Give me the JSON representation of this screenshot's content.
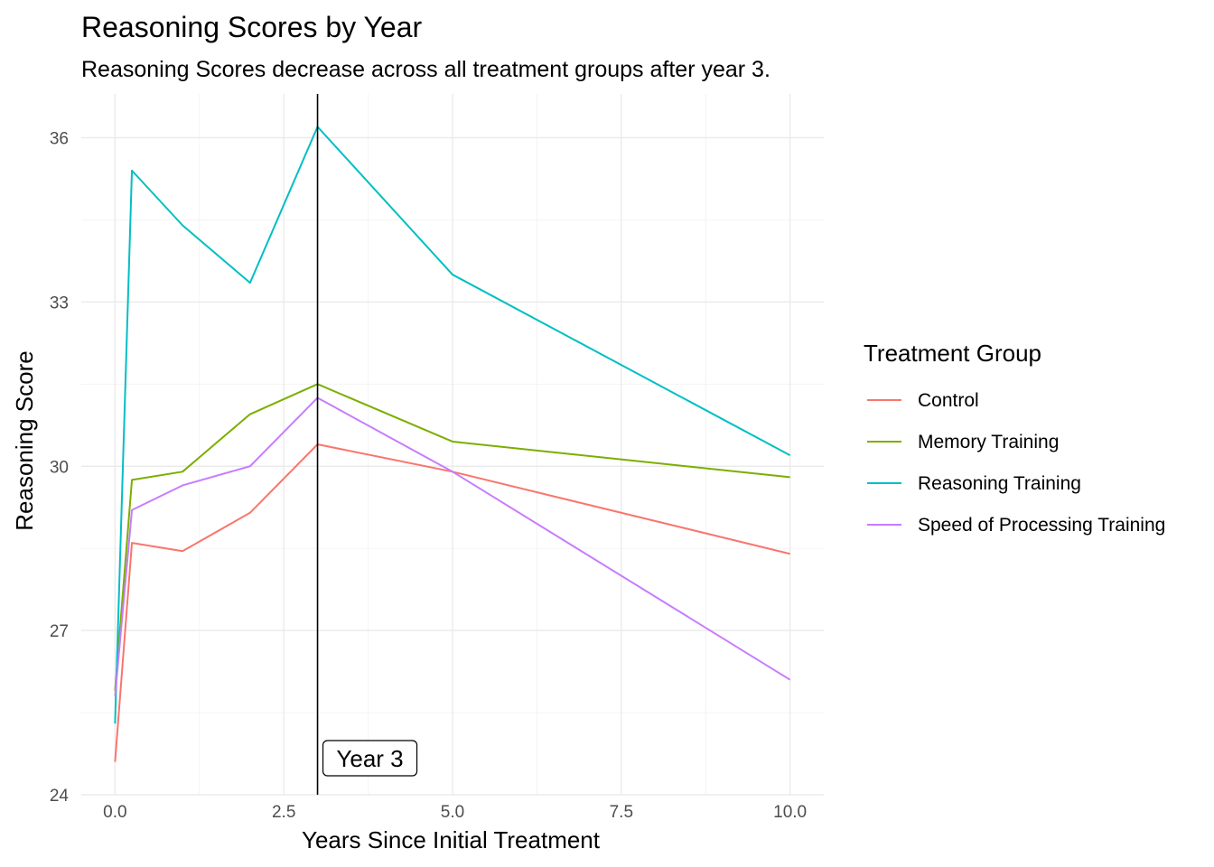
{
  "chart_data": {
    "type": "line",
    "title": "Reasoning Scores by Year",
    "subtitle": "Reasoning Scores decrease across all treatment groups after year 3.",
    "xlabel": "Years Since Initial Treatment",
    "ylabel": "Reasoning Score",
    "xlim": [
      -0.5,
      10.5
    ],
    "ylim": [
      24,
      36.8
    ],
    "x_ticks": [
      0,
      2.5,
      5,
      7.5,
      10
    ],
    "x_tick_labels": [
      "0.0",
      "2.5",
      "5.0",
      "7.5",
      "10.0"
    ],
    "y_ticks": [
      24,
      27,
      30,
      33,
      36
    ],
    "y_tick_labels": [
      "24",
      "27",
      "30",
      "33",
      "36"
    ],
    "grid": true,
    "legend": {
      "title": "Treatment Group",
      "position": "right"
    },
    "series": [
      {
        "name": "Control",
        "color": "#F8766D",
        "x": [
          0,
          0.25,
          1,
          2,
          3,
          5,
          10
        ],
        "y": [
          24.6,
          28.6,
          28.45,
          29.15,
          30.4,
          29.9,
          28.4
        ]
      },
      {
        "name": "Memory Training",
        "color": "#7CAE00",
        "x": [
          0,
          0.25,
          1,
          2,
          3,
          5,
          10
        ],
        "y": [
          25.9,
          29.75,
          29.9,
          30.95,
          31.5,
          30.45,
          29.8
        ]
      },
      {
        "name": "Reasoning Training",
        "color": "#00BFC4",
        "x": [
          0,
          0.25,
          1,
          2,
          3,
          5,
          10
        ],
        "y": [
          25.3,
          35.4,
          34.4,
          33.35,
          36.2,
          33.5,
          30.2
        ]
      },
      {
        "name": "Speed of Processing Training",
        "color": "#C77CFF",
        "x": [
          0,
          0.25,
          1,
          2,
          3,
          5,
          10
        ],
        "y": [
          25.8,
          29.2,
          29.65,
          30.0,
          31.25,
          29.9,
          26.1
        ]
      }
    ],
    "annotations": [
      {
        "type": "vline",
        "x": 3,
        "color": "#000000",
        "label": "Year 3"
      }
    ]
  }
}
